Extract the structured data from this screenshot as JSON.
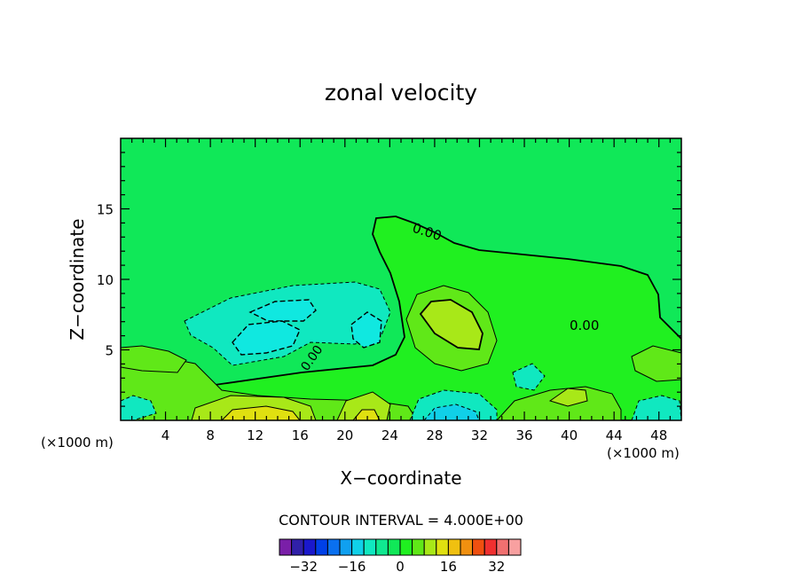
{
  "chart_data": {
    "type": "heatmap",
    "title": "zonal velocity",
    "xlabel": "X−coordinate",
    "ylabel": "Z−coordinate",
    "x_unit_left": "(×1000 m)",
    "x_unit_right": "(×1000 m)",
    "xlim": [
      0,
      50
    ],
    "ylim": [
      0,
      20
    ],
    "x_ticks": [
      4,
      8,
      12,
      16,
      20,
      24,
      28,
      32,
      36,
      40,
      44,
      48
    ],
    "y_ticks": [
      5,
      10,
      15
    ],
    "contour_interval_text": "CONTOUR INTERVAL = 4.000E+00",
    "contour_interval": 4.0,
    "zero_contour_label": "0.00",
    "colorbar": {
      "levels": [
        -36,
        -32,
        -28,
        -24,
        -20,
        -16,
        -12,
        -8,
        -4,
        0,
        4,
        8,
        12,
        16,
        20,
        24,
        28,
        32,
        36
      ],
      "colors": [
        "#7a1fa8",
        "#3020a8",
        "#1a18cc",
        "#0040e8",
        "#0a70f0",
        "#10a0f0",
        "#10d0e8",
        "#10e8c0",
        "#10e890",
        "#10e858",
        "#20f020",
        "#60e818",
        "#a8e818",
        "#e0e010",
        "#f0c010",
        "#f09010",
        "#f05010",
        "#f03030",
        "#f07070",
        "#f8a0a0"
      ],
      "tick_labels": [
        {
          "value": -32,
          "label": "−32"
        },
        {
          "value": -16,
          "label": "−16"
        },
        {
          "value": 0,
          "label": "0"
        },
        {
          "value": 16,
          "label": "16"
        },
        {
          "value": 32,
          "label": "32"
        }
      ]
    },
    "background_color": "#10e858"
  }
}
